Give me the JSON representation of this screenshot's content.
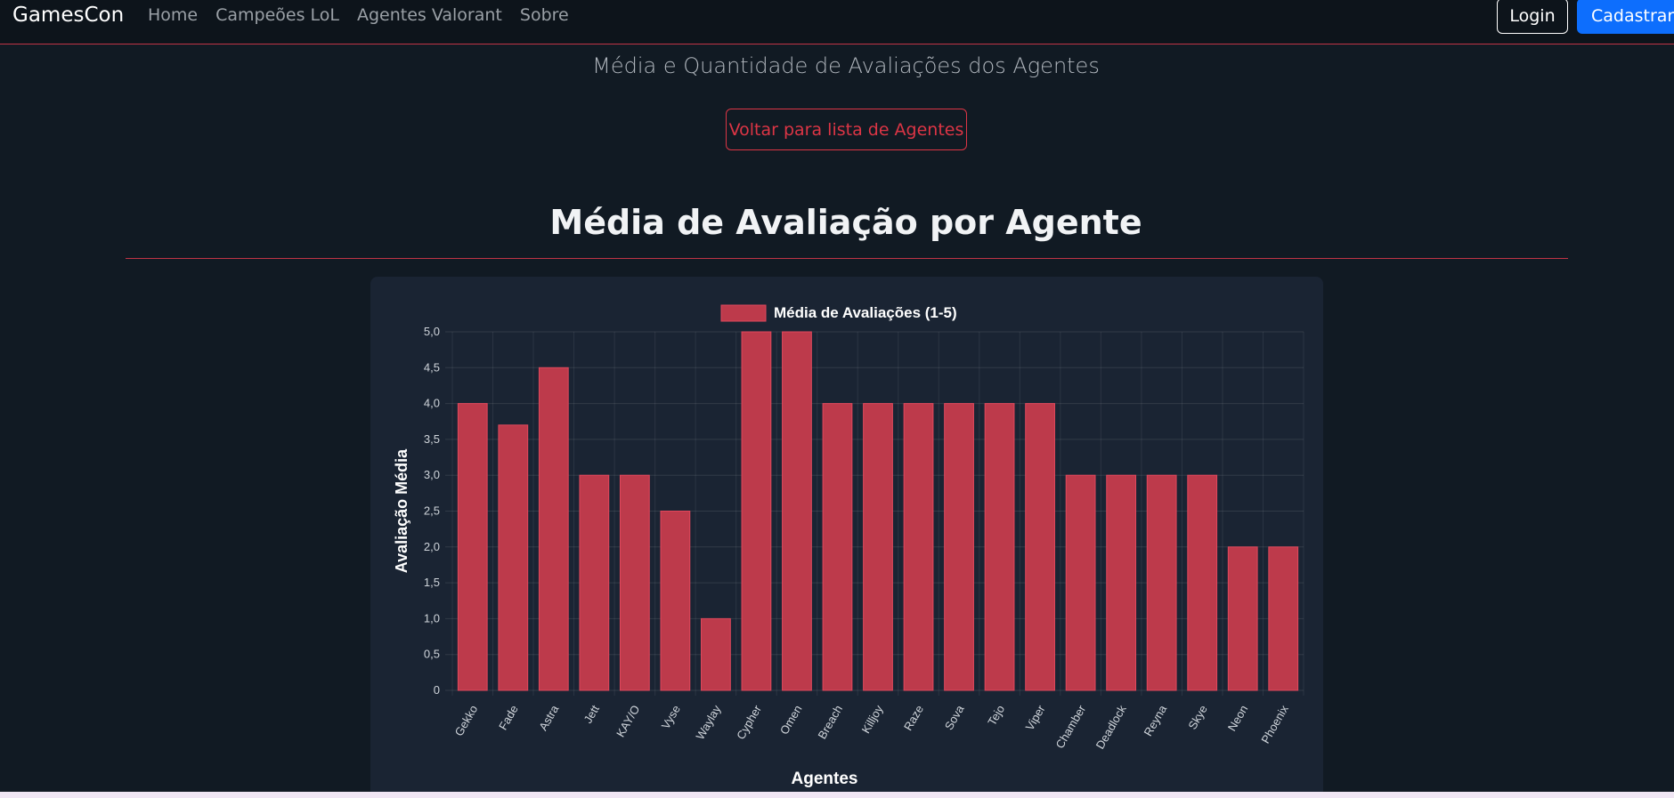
{
  "navbar": {
    "brand": "GamesCon",
    "links": [
      "Home",
      "Campeões LoL",
      "Agentes Valorant",
      "Sobre"
    ],
    "login_label": "Login",
    "signup_label": "Cadastrar"
  },
  "page": {
    "subtitle": "Média e Quantidade de Avaliações dos Agentes",
    "back_button": "Voltar para lista de Agentes",
    "section_title": "Média de Avaliação por Agente"
  },
  "colors": {
    "accent": "#dc3545",
    "bar_fill": "#bd3a4b",
    "primary": "#0d6efd"
  },
  "chart_data": {
    "type": "bar",
    "legend": "Média de Avaliações (1-5)",
    "legend_position": "top",
    "ylabel": "Avaliação Média",
    "xlabel": "Agentes",
    "ylim": [
      0,
      5
    ],
    "yticks": [
      "0",
      "0,5",
      "1,0",
      "1,5",
      "2,0",
      "2,5",
      "3,0",
      "3,5",
      "4,0",
      "4,5",
      "5,0"
    ],
    "grid": true,
    "categories": [
      "Gekko",
      "Fade",
      "Astra",
      "Jett",
      "KAY/O",
      "Vyse",
      "Waylay",
      "Cypher",
      "Omen",
      "Breach",
      "Killjoy",
      "Raze",
      "Sova",
      "Tejo",
      "Viper",
      "Chamber",
      "Deadlock",
      "Reyna",
      "Skye",
      "Neon",
      "Phoenix"
    ],
    "series": [
      {
        "name": "Média de Avaliações (1-5)",
        "values": [
          4.0,
          3.7,
          4.5,
          3.0,
          3.0,
          2.5,
          1.0,
          5.0,
          5.0,
          4.0,
          4.0,
          4.0,
          4.0,
          4.0,
          4.0,
          3.0,
          3.0,
          3.0,
          3.0,
          2.0,
          2.0
        ]
      }
    ]
  }
}
